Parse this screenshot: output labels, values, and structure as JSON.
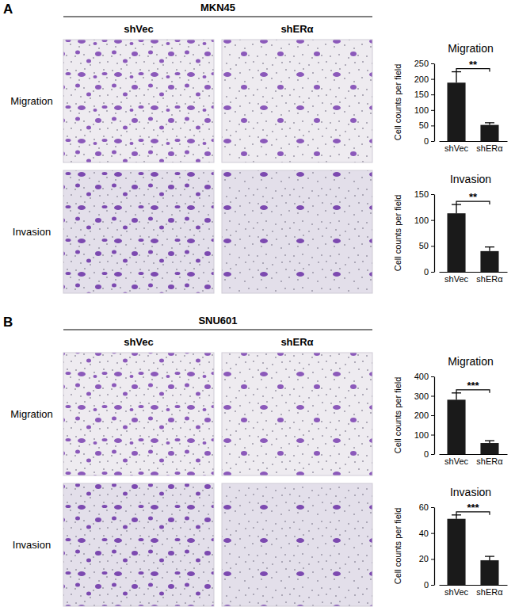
{
  "figure": {
    "panels": [
      {
        "label": "A",
        "cell_line": "MKN45",
        "columns": [
          "shVec",
          "shERα"
        ],
        "rows": [
          "Migration",
          "Invasion"
        ]
      },
      {
        "label": "B",
        "cell_line": "SNU601",
        "columns": [
          "shVec",
          "shERα"
        ],
        "rows": [
          "Migration",
          "Invasion"
        ]
      }
    ]
  },
  "chart_data": [
    {
      "type": "bar",
      "title": "Migration",
      "y_label": "Cell counts per field",
      "categories": [
        "shVec",
        "shERα"
      ],
      "values": [
        188,
        52
      ],
      "error": [
        35,
        7
      ],
      "significance": "**",
      "color": "#1a1a1a",
      "ylim": [
        0,
        250
      ],
      "yticks": [
        0,
        50,
        100,
        150,
        200,
        250
      ]
    },
    {
      "type": "bar",
      "title": "Invasion",
      "y_label": "Cell counts per field",
      "categories": [
        "shVec",
        "shERα"
      ],
      "values": [
        113,
        40
      ],
      "error": [
        17,
        8
      ],
      "significance": "**",
      "color": "#1a1a1a",
      "ylim": [
        0,
        150
      ],
      "yticks": [
        0,
        50,
        100,
        150
      ]
    },
    {
      "type": "bar",
      "title": "Migration",
      "y_label": "Cell counts per field",
      "categories": [
        "shVec",
        "shERα"
      ],
      "values": [
        280,
        57
      ],
      "error": [
        35,
        12
      ],
      "significance": "***",
      "color": "#1a1a1a",
      "ylim": [
        0,
        400
      ],
      "yticks": [
        0,
        100,
        200,
        300,
        400
      ]
    },
    {
      "type": "bar",
      "title": "Invasion",
      "y_label": "Cell counts per field",
      "categories": [
        "shVec",
        "shERα"
      ],
      "values": [
        51,
        19
      ],
      "error": [
        3,
        3
      ],
      "significance": "***",
      "color": "#1a1a1a",
      "ylim": [
        0,
        60
      ],
      "yticks": [
        0,
        20,
        40,
        60
      ]
    }
  ]
}
